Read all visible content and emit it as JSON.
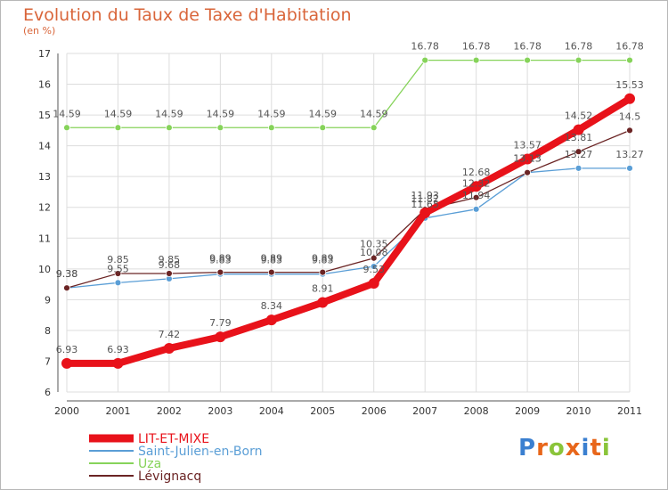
{
  "title": "Evolution du Taux de Taxe d'Habitation",
  "subtitle": "(en %)",
  "logo_text": "Proxiti",
  "colors": {
    "title": "#d9653a",
    "grid": "#dddddd",
    "axis": "#555555"
  },
  "chart_data": {
    "type": "line",
    "title": "Evolution du Taux de Taxe d'Habitation",
    "ylabel": "(en %)",
    "xlabel": "",
    "x": [
      "2000",
      "2001",
      "2002",
      "2003",
      "2004",
      "2005",
      "2006",
      "2007",
      "2008",
      "2009",
      "2010",
      "2011"
    ],
    "ylim": [
      6,
      17
    ],
    "yticks": [
      6,
      7,
      8,
      9,
      10,
      11,
      12,
      13,
      14,
      15,
      16,
      17
    ],
    "grid": true,
    "legend_position": "bottom-left",
    "series": [
      {
        "name": "LIT-ET-MIXE",
        "color": "#e8121a",
        "values": [
          6.93,
          6.93,
          7.42,
          7.79,
          8.34,
          8.91,
          9.53,
          11.82,
          12.68,
          13.57,
          14.52,
          15.53
        ],
        "labels": [
          "6.93",
          "6.93",
          "7.42",
          "7.79",
          "8.34",
          "8.91",
          "9.53",
          "11.82",
          "12.68",
          "13.57",
          "14.52",
          "15.53"
        ]
      },
      {
        "name": "Saint-Julien-en-Born",
        "color": "#5a9ed6",
        "values": [
          9.38,
          9.55,
          9.68,
          9.83,
          9.83,
          9.83,
          10.08,
          11.65,
          11.94,
          13.13,
          13.27,
          13.27
        ],
        "labels": [
          "9.38",
          "9.55",
          "9.68",
          "9.83",
          "9.83",
          "9.83",
          "10.08",
          "11.65",
          "11.94",
          "13.13",
          "13.27",
          "13.27"
        ]
      },
      {
        "name": "Uza",
        "color": "#86d35a",
        "values": [
          14.59,
          14.59,
          14.59,
          14.59,
          14.59,
          14.59,
          14.59,
          16.78,
          16.78,
          16.78,
          16.78,
          16.78
        ],
        "labels": [
          "14.59",
          "14.59",
          "14.59",
          "14.59",
          "14.59",
          "14.59",
          "14.59",
          "16.78",
          "16.78",
          "16.78",
          "16.78",
          "16.78"
        ]
      },
      {
        "name": "Lévignacq",
        "color": "#6b2424",
        "values": [
          9.38,
          9.85,
          9.85,
          9.89,
          9.89,
          9.89,
          10.35,
          11.93,
          12.32,
          13.13,
          13.81,
          14.5
        ],
        "labels": [
          "9.38",
          "9.85",
          "9.85",
          "9.89",
          "9.89",
          "9.89",
          "10.35",
          "11.93",
          "12.32",
          "13.13",
          "13.81",
          "14.5"
        ]
      }
    ]
  }
}
